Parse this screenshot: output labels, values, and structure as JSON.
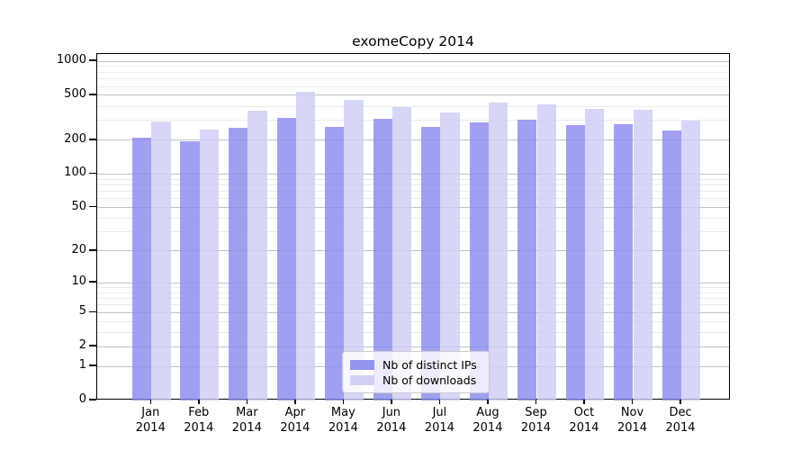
{
  "chart_data": {
    "type": "bar",
    "title": "exomeCopy 2014",
    "categories": [
      "Jan 2014",
      "Feb 2014",
      "Mar 2014",
      "Apr 2014",
      "May 2014",
      "Jun 2014",
      "Jul 2014",
      "Aug 2014",
      "Sep 2014",
      "Oct 2014",
      "Nov 2014",
      "Dec 2014"
    ],
    "series": [
      {
        "name": "Nb of distinct IPs",
        "color": "#8888ee",
        "values": [
          212,
          194,
          260,
          316,
          264,
          310,
          264,
          290,
          305,
          271,
          280,
          246
        ]
      },
      {
        "name": "Nb of downloads",
        "color": "#ccccf5",
        "values": [
          296,
          247,
          366,
          540,
          459,
          392,
          356,
          431,
          419,
          379,
          370,
          298
        ]
      }
    ],
    "bar_opacity": 0.8,
    "y_axis": {
      "scale": "log10(1+x)",
      "ylim": [
        0,
        1000
      ],
      "tick_labels": [
        "1000",
        "500",
        "200",
        "100",
        "50",
        "20",
        "10",
        "5",
        "2",
        "1",
        "0"
      ],
      "tick_values": [
        1000,
        500,
        200,
        100,
        50,
        20,
        10,
        5,
        2,
        1,
        0
      ],
      "minor_gridlines": [
        900,
        800,
        700,
        600,
        400,
        300,
        90,
        80,
        70,
        60,
        40,
        30,
        9,
        8,
        7,
        6,
        4,
        3
      ]
    },
    "xlabel": "",
    "ylabel": "",
    "grid": "on",
    "legend": {
      "position": "bottom-center",
      "entries": [
        "Nb of distinct IPs",
        "Nb of downloads"
      ]
    }
  }
}
